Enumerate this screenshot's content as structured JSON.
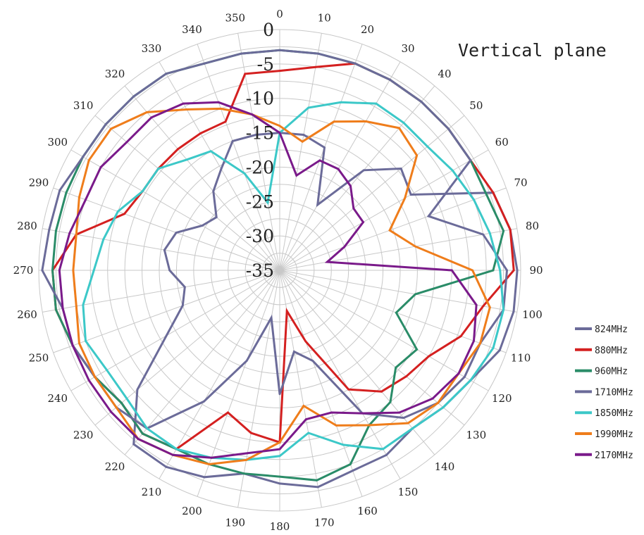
{
  "chart_data": {
    "type": "polar-line",
    "title": "Vertical plane",
    "radial_axis": {
      "min": -35,
      "max": 0,
      "ticks": [
        0,
        -5,
        -10,
        -15,
        -20,
        -25,
        -30,
        -35
      ]
    },
    "angular_axis": {
      "step": 10,
      "direction": "clockwise",
      "zero": "top",
      "tick_labels": [
        "0",
        "10",
        "20",
        "30",
        "40",
        "50",
        "60",
        "70",
        "80",
        "90",
        "100",
        "110",
        "120",
        "130",
        "140",
        "150",
        "160",
        "170",
        "180",
        "190",
        "200",
        "210",
        "220",
        "230",
        "240",
        "250",
        "260",
        "270",
        "280",
        "290",
        "300",
        "310",
        "320",
        "330",
        "340",
        "350"
      ]
    },
    "grid": true,
    "legend_position": "right",
    "angles": [
      0,
      10,
      20,
      30,
      40,
      50,
      60,
      70,
      80,
      90,
      100,
      110,
      120,
      130,
      140,
      150,
      160,
      170,
      180,
      190,
      200,
      210,
      220,
      230,
      240,
      250,
      260,
      270,
      280,
      290,
      300,
      310,
      320,
      330,
      340,
      350
    ],
    "series": [
      {
        "name": "824MHz",
        "color": "#6b6b99",
        "values": [
          -15,
          -15,
          -16,
          -24,
          -16,
          -12,
          -13,
          -2,
          -1,
          -0.5,
          -0.5,
          -1,
          -3,
          -4,
          -5,
          -4,
          -4,
          -3,
          -4,
          -5,
          -3,
          -2,
          -2,
          -8,
          -16,
          -20,
          -21,
          -19,
          -18,
          -19,
          -22,
          -23,
          -20,
          -18,
          -15,
          -15
        ]
      },
      {
        "name": "880MHz",
        "color": "#d42020",
        "values": [
          -6,
          -5,
          -3,
          -3,
          -3,
          -3,
          -3,
          -2,
          -1,
          -1,
          -5,
          -7,
          -10,
          -11,
          -12,
          -15,
          -24,
          -29,
          -10,
          -11,
          -13,
          -5,
          -4,
          -5,
          -4,
          -3,
          -2,
          -2,
          -5,
          -11,
          -12,
          -12,
          -12,
          -12,
          -12,
          -6
        ]
      },
      {
        "name": "960MHz",
        "color": "#2a8c68",
        "values": [
          -3,
          -3,
          -3,
          -3,
          -3,
          -3,
          -3,
          -3,
          -2,
          -4,
          -15,
          -17,
          -12,
          -13,
          -10,
          -9,
          -5,
          -4,
          -5,
          -5,
          -5,
          -5,
          -4,
          -5,
          -4,
          -3,
          -2,
          -2,
          -2,
          -2,
          -2,
          -2,
          -2,
          -2,
          -3,
          -3
        ]
      },
      {
        "name": "1710MHz",
        "color": "#6b6b99",
        "values": [
          -3,
          -3,
          -3,
          -3,
          -3,
          -3,
          -3,
          -12,
          -5,
          -2,
          -2,
          -4,
          -4,
          -5,
          -7,
          -11,
          -21,
          -23,
          -17,
          -28,
          -21,
          -13,
          -5,
          -4,
          -4,
          -3,
          -3,
          -0.5,
          -1,
          -1,
          -2,
          -2,
          -2,
          -2,
          -3,
          -3
        ]
      },
      {
        "name": "1850MHz",
        "color": "#3cc8c8",
        "values": [
          -15,
          -11,
          -9,
          -7,
          -7,
          -7,
          -6,
          -5,
          -4,
          -3,
          -2,
          -2,
          -3,
          -4,
          -5,
          -5,
          -8,
          -11,
          -8,
          -7,
          -6,
          -5,
          -5,
          -6,
          -6,
          -5,
          -6,
          -8,
          -9,
          -10,
          -12,
          -12,
          -14,
          -15,
          -20,
          -25
        ]
      },
      {
        "name": "1990MHz",
        "color": "#ef7d1b",
        "values": [
          -14,
          -16,
          -12,
          -10,
          -8,
          -9,
          -14,
          -18,
          -15,
          -7,
          -4,
          -4,
          -5,
          -5,
          -6,
          -9,
          -11,
          -15,
          -10,
          -7,
          -5,
          -4,
          -3,
          -4,
          -4,
          -4,
          -5,
          -5,
          -5,
          -4,
          -3,
          -3,
          -5,
          -8,
          -10,
          -12
        ]
      },
      {
        "name": "2170MHz",
        "color": "#7a1a8a",
        "values": [
          -15,
          -21,
          -18,
          -18,
          -19,
          -21,
          -21,
          -25,
          -28,
          -10,
          -6,
          -5,
          -5,
          -6,
          -8,
          -11,
          -13,
          -13,
          -9,
          -8,
          -6,
          -4,
          -3,
          -3,
          -3,
          -3,
          -3,
          -3,
          -4,
          -5,
          -5,
          -6,
          -6,
          -7,
          -9,
          -12
        ]
      }
    ]
  }
}
